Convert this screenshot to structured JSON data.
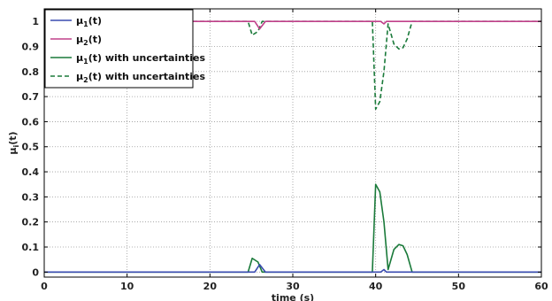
{
  "chart_data": {
    "type": "line",
    "xlabel": "time (s)",
    "ylabel": "μi(t)",
    "xlim": [
      0,
      60
    ],
    "ylim": [
      -0.02,
      1.05
    ],
    "xticks": [
      0,
      10,
      20,
      30,
      40,
      50,
      60
    ],
    "yticks": [
      0,
      0.1,
      0.2,
      0.3,
      0.4,
      0.5,
      0.6,
      0.7,
      0.8,
      0.9,
      1
    ],
    "grid": true,
    "legend_position": "top-left",
    "series": [
      {
        "name": "μ1(t)",
        "color": "#3a4bb0",
        "dash": "solid",
        "x": [
          0,
          25.4,
          26.0,
          26.7,
          40.6,
          41.0,
          41.3,
          60
        ],
        "y": [
          0,
          0,
          0.03,
          0,
          0,
          0.01,
          0,
          0
        ]
      },
      {
        "name": "μ2(t)",
        "color": "#c0408a",
        "dash": "solid",
        "x": [
          0,
          25.4,
          26.0,
          26.7,
          40.6,
          41.0,
          41.3,
          60
        ],
        "y": [
          1,
          1,
          0.97,
          1,
          1,
          0.99,
          1,
          1
        ]
      },
      {
        "name": "μ1(t) with uncertainties",
        "color": "#1a7a3a",
        "dash": "solid",
        "x": [
          0,
          24.6,
          25.1,
          25.8,
          26.3,
          39.6,
          40.0,
          40.5,
          41.0,
          41.5,
          42.2,
          42.8,
          43.3,
          43.8,
          44.4,
          60
        ],
        "y": [
          0,
          0,
          0.055,
          0.04,
          0,
          0,
          0.35,
          0.32,
          0.2,
          0.01,
          0.09,
          0.11,
          0.105,
          0.07,
          0,
          0
        ]
      },
      {
        "name": "μ2(t) with uncertainties",
        "color": "#1a7a3a",
        "dash": "dashed",
        "x": [
          0,
          24.6,
          25.1,
          25.8,
          26.3,
          39.6,
          40.0,
          40.5,
          41.0,
          41.5,
          42.2,
          42.8,
          43.3,
          43.8,
          44.4,
          60
        ],
        "y": [
          1,
          1,
          0.945,
          0.96,
          1,
          1,
          0.65,
          0.68,
          0.8,
          0.99,
          0.91,
          0.89,
          0.895,
          0.93,
          1,
          1
        ]
      }
    ]
  }
}
